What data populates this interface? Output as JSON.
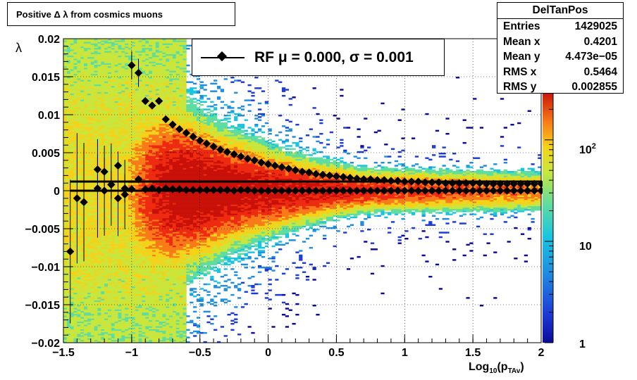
{
  "title": "Positive Δ λ from cosmics muons",
  "legend": {
    "label_prefix": "RF μ =  0.000, σ =   0.001"
  },
  "stats": {
    "name": "DelTanPos",
    "rows": [
      {
        "key": "Entries",
        "value": "1429025"
      },
      {
        "key": "Mean x",
        "value": "0.4201"
      },
      {
        "key": "Mean y",
        "value": "4.473e−05"
      },
      {
        "key": "RMS x",
        "value": "0.5464"
      },
      {
        "key": "RMS y",
        "value": "0.002855"
      }
    ]
  },
  "axes": {
    "xlabel_main": "Log",
    "xlabel_sub1": "10",
    "xlabel_paren": "(p",
    "xlabel_sub2": "TAv",
    "xlabel_close": ")",
    "ylabel": "λ"
  },
  "chart_data": {
    "type": "heatmap",
    "xlim": [
      -1.5,
      2.0
    ],
    "ylim": [
      -0.02,
      0.02
    ],
    "x_ticks": [
      "−1.5",
      "−1",
      "−0.5",
      "0",
      "0.5",
      "1",
      "1.5",
      "2"
    ],
    "x_tick_values": [
      -1.5,
      -1,
      -0.5,
      0,
      0.5,
      1,
      1.5,
      2
    ],
    "y_ticks": [
      "−0.02",
      "−0.015",
      "−0.01",
      "−0.005",
      "0",
      "0.005",
      "0.01",
      "0.015",
      "0.02"
    ],
    "y_tick_values": [
      -0.02,
      -0.015,
      -0.01,
      -0.005,
      0,
      0.005,
      0.01,
      0.015,
      0.02
    ],
    "z_scale": "log",
    "z_ticks": [
      "1",
      "10",
      "10^2"
    ],
    "grid": true,
    "colormap": [
      "#0b0a9a",
      "#1e3cd8",
      "#1f8ee0",
      "#19c4e0",
      "#5fdca0",
      "#c8e63c",
      "#f5d21a",
      "#f87a18",
      "#ee2a10",
      "#c81008"
    ],
    "mean_points": {
      "x": [
        -1.45,
        -1.4,
        -1.35,
        -1.25,
        -1.2,
        -1.15,
        -1.1,
        -1.05,
        -1.0,
        -0.95,
        -0.9,
        -0.85,
        -0.8,
        -0.75,
        -0.7,
        -0.65,
        -0.6,
        -0.55,
        -0.5,
        -0.45,
        -0.4,
        -0.35,
        -0.3,
        -0.25,
        -0.2,
        -0.15,
        -0.1,
        -0.05,
        0.0,
        0.05,
        0.1,
        0.15,
        0.2,
        0.25,
        0.3,
        0.35,
        0.4,
        0.45,
        0.5,
        0.55,
        0.6,
        0.65,
        0.7,
        0.75,
        0.8,
        0.85,
        0.9,
        0.95,
        1.0,
        1.05,
        1.1,
        1.15,
        1.2,
        1.25,
        1.3,
        1.35,
        1.4,
        1.45,
        1.5,
        1.55,
        1.6,
        1.65,
        1.7,
        1.75,
        1.8,
        1.85,
        1.9,
        1.95,
        2.0
      ],
      "y": [
        -0.008,
        -0.001,
        -0.0015,
        0.0003,
        0.0,
        0.0008,
        -0.001,
        -0.0005,
        0.0002,
        0.0015,
        0.0002,
        0.0003,
        0.0001,
        0.0003,
        0.0002,
        0.0002,
        0.0001,
        0.0001,
        0.0001,
        0.0001,
        0.0001,
        0.0001,
        0.0001,
        0.0,
        0.0001,
        0.0001,
        0.0,
        0.0,
        0.0,
        0.0,
        0.0,
        0.0,
        0.0,
        0.0,
        0.0,
        0.0,
        0.0,
        0.0,
        0.0,
        0.0,
        0.0,
        0.0,
        0.0,
        0.0,
        0.0,
        0.0,
        0.0,
        0.0,
        0.0,
        0.0,
        0.0,
        0.0,
        0.0,
        0.0,
        0.0,
        0.0,
        0.0,
        0.0,
        0.0,
        0.0,
        0.0,
        0.0,
        0.0,
        0.0,
        0.0,
        0.0,
        0.0,
        0.0,
        0.0
      ]
    },
    "rms_points": {
      "x": [
        -1.25,
        -1.2,
        -1.15,
        -1.1,
        -1.05,
        -1.0,
        -0.95,
        -0.9,
        -0.85,
        -0.8,
        -0.75,
        -0.7,
        -0.65,
        -0.6,
        -0.55,
        -0.5,
        -0.45,
        -0.4,
        -0.35,
        -0.3,
        -0.25,
        -0.2,
        -0.15,
        -0.1,
        -0.05,
        0.0,
        0.05,
        0.1,
        0.15,
        0.2,
        0.25,
        0.3,
        0.35,
        0.4,
        0.45,
        0.5,
        0.55,
        0.6,
        0.65,
        0.7,
        0.75,
        0.8,
        0.85,
        0.9,
        0.95,
        1.0,
        1.05,
        1.1,
        1.15,
        1.2,
        1.25,
        1.3,
        1.35,
        1.4,
        1.45,
        1.5,
        1.55,
        1.6,
        1.65,
        1.7,
        1.75,
        1.8,
        1.85,
        1.9,
        1.95,
        2.0
      ],
      "y": [
        0.0028,
        0.0025,
        0.0008,
        0.0033,
        0.0003,
        0.0165,
        0.0155,
        0.0118,
        0.0112,
        0.0118,
        0.0094,
        0.0087,
        0.0081,
        0.0076,
        0.0071,
        0.0066,
        0.0062,
        0.0058,
        0.0054,
        0.0051,
        0.0048,
        0.0045,
        0.0042,
        0.004,
        0.0037,
        0.0035,
        0.0033,
        0.0031,
        0.0029,
        0.0027,
        0.0025,
        0.0024,
        0.0022,
        0.0021,
        0.002,
        0.0019,
        0.0018,
        0.0017,
        0.0016,
        0.0015,
        0.0015,
        0.0014,
        0.0014,
        0.0013,
        0.0013,
        0.0012,
        0.0012,
        0.0012,
        0.0011,
        0.0011,
        0.0011,
        0.001,
        0.001,
        0.001,
        0.001,
        0.001,
        0.001,
        0.0009,
        0.0009,
        0.0009,
        0.0009,
        0.0009,
        0.0009,
        0.0009,
        0.0009,
        0.0009
      ]
    },
    "fit_lines": [
      {
        "from": [
          -1.45,
          0.0012
        ],
        "to": [
          2.0,
          0.0012
        ]
      },
      {
        "from": [
          -1.45,
          0.0
        ],
        "to": [
          2.0,
          0.0
        ]
      }
    ]
  }
}
